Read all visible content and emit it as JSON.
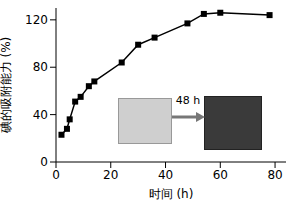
{
  "chart_data": {
    "type": "line",
    "x_label": "时间 (h)",
    "y_label": "碘的吸附能力 (%)",
    "x": [
      2,
      4,
      5,
      7,
      9,
      12,
      14,
      24,
      30,
      36,
      48,
      54,
      60,
      78
    ],
    "values": [
      23,
      28,
      36,
      51,
      55,
      64,
      68,
      84,
      99,
      105,
      117,
      125,
      126,
      124
    ],
    "color": "#000000",
    "marker": "square",
    "line_style": "solid",
    "xlim": [
      0,
      84
    ],
    "xticks": [
      0,
      20,
      40,
      60,
      80
    ],
    "ylim": [
      0,
      130
    ],
    "yticks": [
      0,
      40,
      80,
      120
    ],
    "grid": false,
    "annotations": [
      "48 h"
    ]
  }
}
